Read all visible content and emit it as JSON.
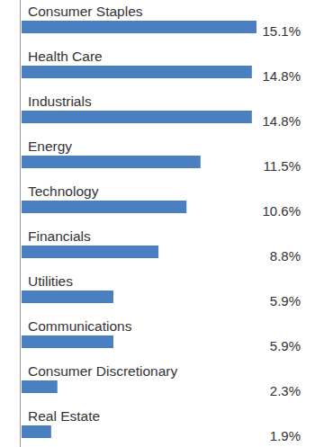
{
  "chart_data": {
    "type": "bar",
    "orientation": "horizontal",
    "categories": [
      "Consumer Staples",
      "Health Care",
      "Industrials",
      "Energy",
      "Technology",
      "Financials",
      "Utilities",
      "Communications",
      "Consumer Discretionary",
      "Real Estate"
    ],
    "values": [
      15.1,
      14.8,
      14.8,
      11.5,
      10.6,
      8.8,
      5.9,
      5.9,
      2.3,
      1.9
    ],
    "value_labels": [
      "15.1%",
      "14.8%",
      "14.8%",
      "11.5%",
      "10.6%",
      "8.8%",
      "5.9%",
      "5.9%",
      "2.3%",
      "1.9%"
    ],
    "color": "#4a7fc1",
    "xlim": [
      0,
      15.1
    ],
    "data_labels": true,
    "tick_labels": false,
    "grid": false
  }
}
